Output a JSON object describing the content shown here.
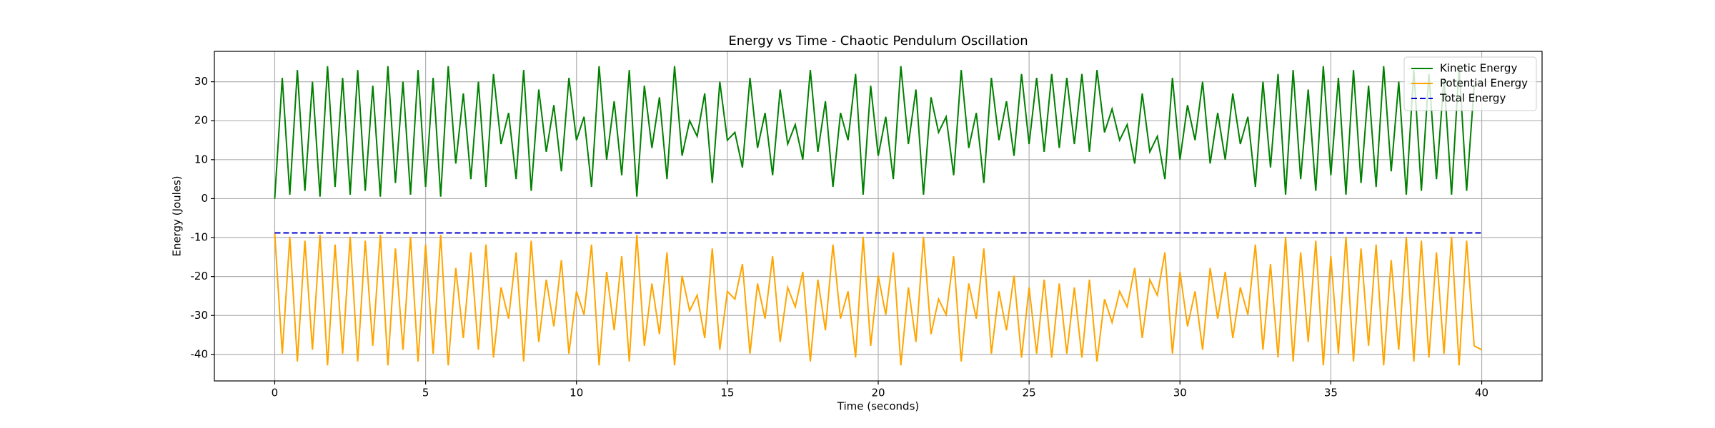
{
  "chart_data": {
    "type": "line",
    "title": "Energy vs Time - Chaotic Pendulum Oscillation",
    "xlabel": "Time (seconds)",
    "ylabel": "Energy (Joules)",
    "x": [
      0,
      0.25,
      0.5,
      0.75,
      1,
      1.25,
      1.5,
      1.75,
      2,
      2.25,
      2.5,
      2.75,
      3,
      3.25,
      3.5,
      3.75,
      4,
      4.25,
      4.5,
      4.75,
      5,
      5.25,
      5.5,
      5.75,
      6,
      6.25,
      6.5,
      6.75,
      7,
      7.25,
      7.5,
      7.75,
      8,
      8.25,
      8.5,
      8.75,
      9,
      9.25,
      9.5,
      9.75,
      10,
      10.25,
      10.5,
      10.75,
      11,
      11.25,
      11.5,
      11.75,
      12,
      12.25,
      12.5,
      12.75,
      13,
      13.25,
      13.5,
      13.75,
      14,
      14.25,
      14.5,
      14.75,
      15,
      15.25,
      15.5,
      15.75,
      16,
      16.25,
      16.5,
      16.75,
      17,
      17.25,
      17.5,
      17.75,
      18,
      18.25,
      18.5,
      18.75,
      19,
      19.25,
      19.5,
      19.75,
      20,
      20.25,
      20.5,
      20.75,
      21,
      21.25,
      21.5,
      21.75,
      22,
      22.25,
      22.5,
      22.75,
      23,
      23.25,
      23.5,
      23.75,
      24,
      24.25,
      24.5,
      24.75,
      25,
      25.25,
      25.5,
      25.75,
      26,
      26.25,
      26.5,
      26.75,
      27,
      27.25,
      27.5,
      27.75,
      28,
      28.25,
      28.5,
      28.75,
      29,
      29.25,
      29.5,
      29.75,
      30,
      30.25,
      30.5,
      30.75,
      31,
      31.25,
      31.5,
      31.75,
      32,
      32.25,
      32.5,
      32.75,
      33,
      33.25,
      33.5,
      33.75,
      34,
      34.25,
      34.5,
      34.75,
      35,
      35.25,
      35.5,
      35.75,
      36,
      36.25,
      36.5,
      36.75,
      37,
      37.25,
      37.5,
      37.75,
      38,
      38.25,
      38.5,
      38.75,
      39,
      39.25,
      39.5,
      39.75,
      40
    ],
    "series": [
      {
        "name": "Kinetic Energy",
        "color": "#008000",
        "dash": "solid",
        "values": [
          0,
          31,
          1,
          33,
          2,
          30,
          0.5,
          34,
          3,
          31,
          1,
          33,
          2,
          29,
          0.5,
          34,
          4,
          30,
          1,
          33,
          3,
          31,
          0.5,
          34,
          9,
          27,
          5,
          30,
          3,
          32,
          14,
          22,
          5,
          33,
          2,
          28,
          12,
          24,
          7,
          31,
          15,
          21,
          3,
          34,
          10,
          25,
          6,
          33,
          0.5,
          29,
          13,
          26,
          5,
          34,
          11,
          20,
          16,
          27,
          4,
          30,
          15,
          17,
          8,
          31,
          13,
          22,
          6,
          28,
          14,
          19,
          10,
          33,
          12,
          25,
          3,
          22,
          15,
          32,
          1,
          29,
          11,
          21,
          5,
          34,
          14,
          28,
          1,
          26,
          17,
          21,
          6,
          33,
          13,
          22,
          4,
          31,
          15,
          25,
          11,
          32,
          14,
          31,
          12,
          32,
          13,
          31,
          14,
          32,
          12,
          33,
          17,
          23,
          15,
          19,
          9,
          27,
          12,
          16,
          5,
          31,
          10,
          24,
          15,
          30,
          9,
          22,
          10,
          27,
          14,
          21,
          3,
          30,
          8,
          32,
          1,
          33,
          5,
          28,
          2,
          34,
          6,
          31,
          1,
          33,
          4,
          29,
          3,
          34,
          7,
          30,
          1,
          33,
          2,
          32,
          5,
          31,
          1,
          34,
          2,
          29,
          30
        ]
      },
      {
        "name": "Potential Energy",
        "color": "#ffa500",
        "dash": "solid",
        "values": [
          -8.8,
          -39.8,
          -9.8,
          -41.8,
          -10.8,
          -38.8,
          -9.3,
          -42.8,
          -11.8,
          -39.8,
          -9.8,
          -41.8,
          -10.8,
          -37.8,
          -9.3,
          -42.8,
          -12.8,
          -38.8,
          -9.8,
          -41.8,
          -11.8,
          -39.8,
          -9.3,
          -42.8,
          -17.8,
          -35.8,
          -13.8,
          -38.8,
          -11.8,
          -40.8,
          -22.8,
          -30.8,
          -13.8,
          -41.8,
          -10.8,
          -36.8,
          -20.8,
          -32.8,
          -15.8,
          -39.8,
          -23.8,
          -29.8,
          -11.8,
          -42.8,
          -18.8,
          -33.8,
          -14.8,
          -41.8,
          -9.3,
          -37.8,
          -21.8,
          -34.8,
          -13.8,
          -42.8,
          -19.8,
          -28.8,
          -24.8,
          -35.8,
          -12.8,
          -38.8,
          -23.8,
          -25.8,
          -16.8,
          -39.8,
          -21.8,
          -30.8,
          -14.8,
          -36.8,
          -22.8,
          -27.8,
          -18.8,
          -41.8,
          -20.8,
          -33.8,
          -11.8,
          -30.8,
          -23.8,
          -40.8,
          -9.8,
          -37.8,
          -19.8,
          -29.8,
          -13.8,
          -42.8,
          -22.8,
          -36.8,
          -9.8,
          -34.8,
          -25.8,
          -29.8,
          -14.8,
          -41.8,
          -21.8,
          -30.8,
          -12.8,
          -39.8,
          -23.8,
          -33.8,
          -19.8,
          -40.8,
          -22.8,
          -39.8,
          -20.8,
          -40.8,
          -21.8,
          -39.8,
          -22.8,
          -40.8,
          -20.8,
          -41.8,
          -25.8,
          -31.8,
          -23.8,
          -27.8,
          -17.8,
          -35.8,
          -20.8,
          -24.8,
          -13.8,
          -39.8,
          -18.8,
          -32.8,
          -23.8,
          -38.8,
          -17.8,
          -30.8,
          -18.8,
          -35.8,
          -22.8,
          -29.8,
          -11.8,
          -38.8,
          -16.8,
          -40.8,
          -9.8,
          -41.8,
          -13.8,
          -36.8,
          -10.8,
          -42.8,
          -14.8,
          -39.8,
          -9.8,
          -41.8,
          -12.8,
          -37.8,
          -11.8,
          -42.8,
          -15.8,
          -38.8,
          -9.8,
          -41.8,
          -10.8,
          -40.8,
          -13.8,
          -39.8,
          -9.8,
          -42.8,
          -10.8,
          -37.8,
          -38.8
        ]
      },
      {
        "name": "Total Energy",
        "color": "#0000cc",
        "dash": "dashed",
        "x": [
          0,
          40
        ],
        "values": [
          -8.8,
          -8.8
        ]
      }
    ],
    "xlim": [
      -2,
      42
    ],
    "ylim": [
      -46.8,
      37.8
    ],
    "xticks": [
      0,
      5,
      10,
      15,
      20,
      25,
      30,
      35,
      40
    ],
    "yticks": [
      -40,
      -30,
      -20,
      -10,
      0,
      10,
      20,
      30
    ],
    "grid": true,
    "legend": "upper right"
  }
}
